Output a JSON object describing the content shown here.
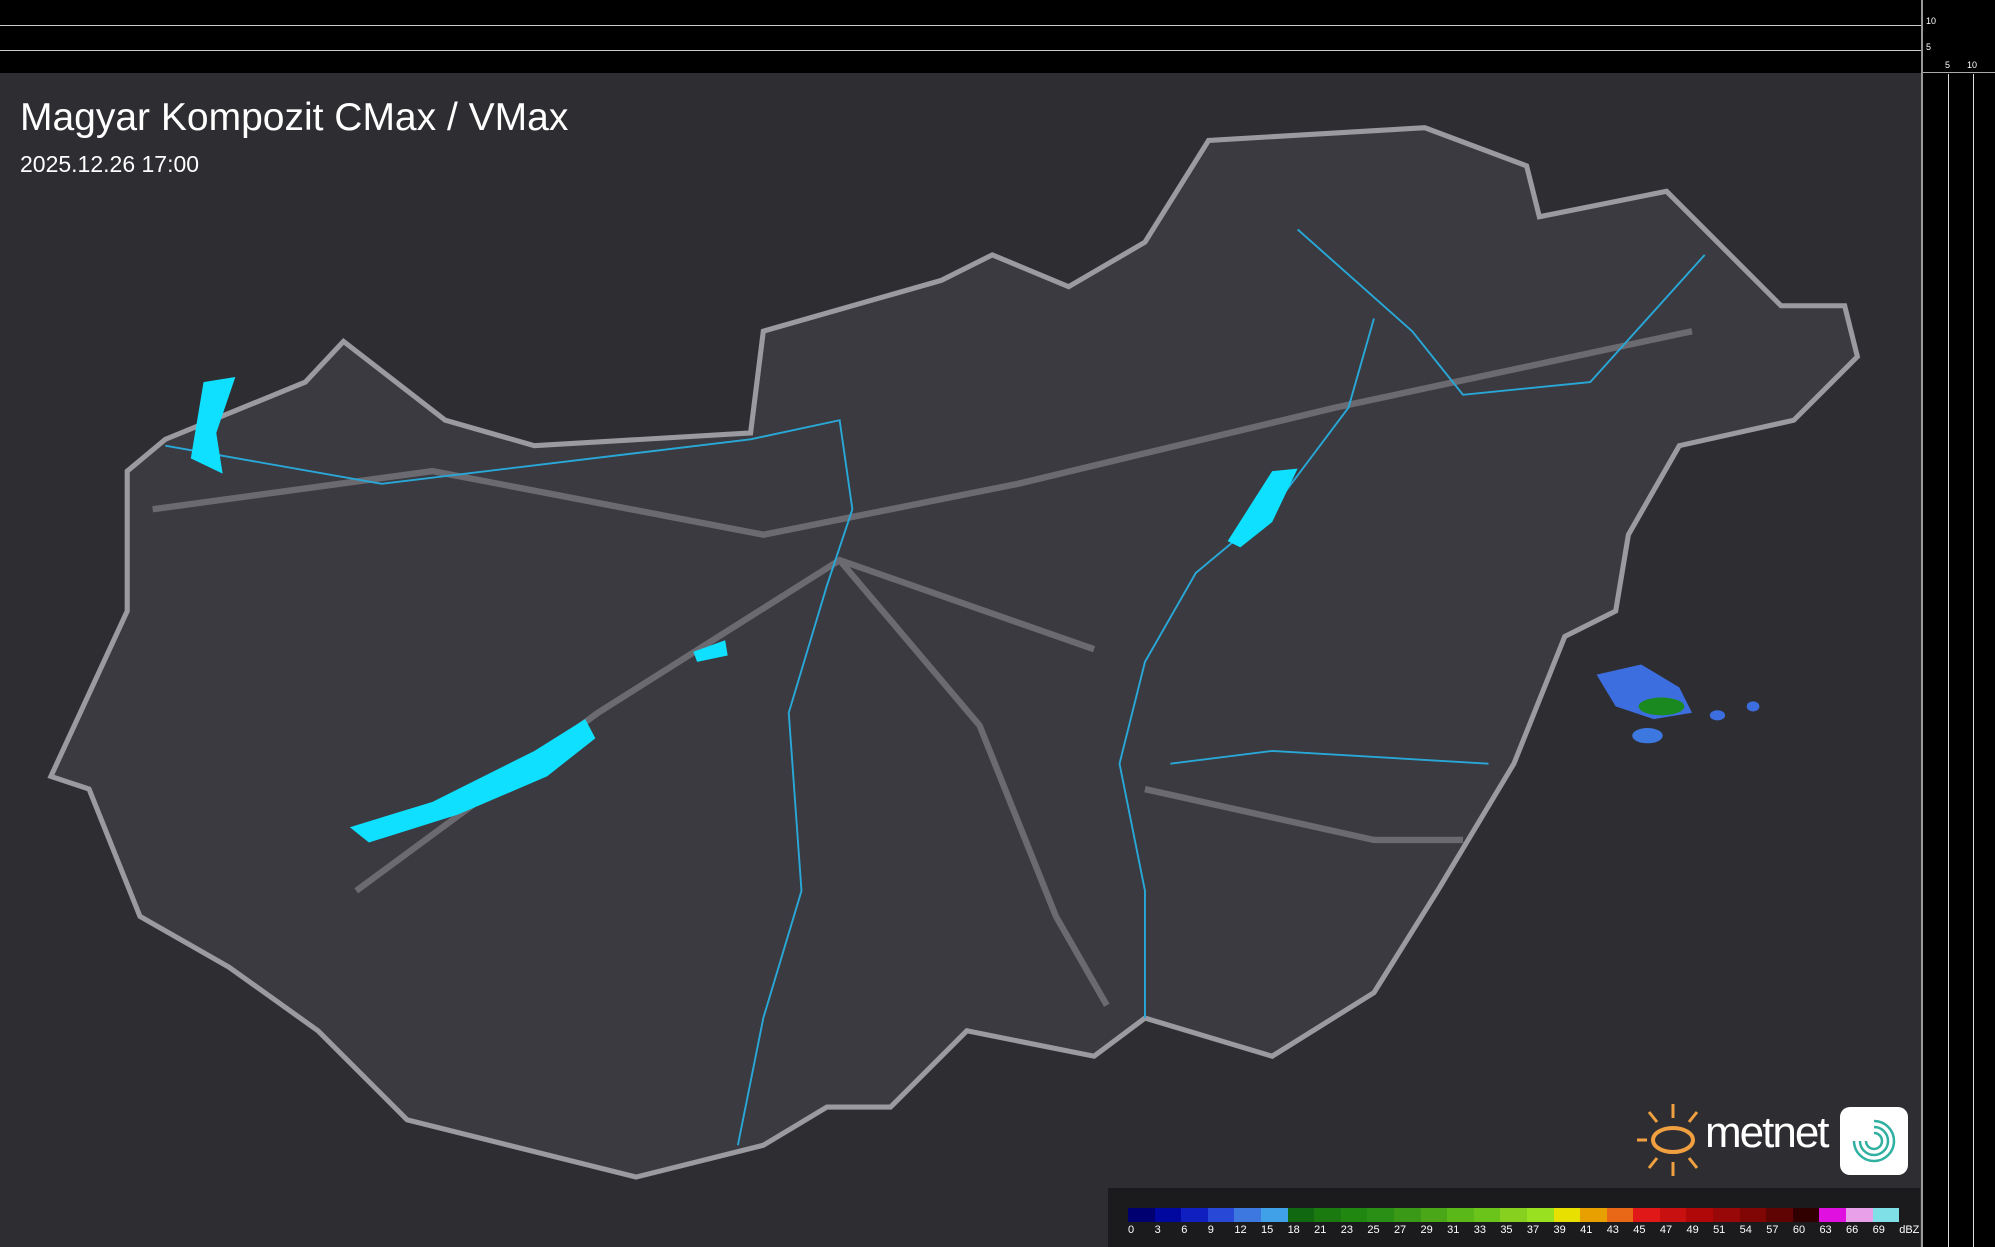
{
  "header": {
    "title": "Magyar Kompozit CMax / VMax",
    "timestamp": "2025.12.26 17:00"
  },
  "side_axes": {
    "top_ticks": [
      "10",
      "5"
    ],
    "right_ticks": [
      "5",
      "10"
    ]
  },
  "legend": {
    "unit": "dBZ",
    "labels": [
      "0",
      "3",
      "6",
      "9",
      "12",
      "15",
      "18",
      "21",
      "23",
      "25",
      "27",
      "29",
      "31",
      "33",
      "35",
      "37",
      "39",
      "41",
      "43",
      "45",
      "47",
      "49",
      "51",
      "54",
      "57",
      "60",
      "63",
      "66",
      "69"
    ],
    "colors": [
      "#000070",
      "#0008a0",
      "#1020c0",
      "#2848d8",
      "#3c78e0",
      "#40a0e8",
      "#106810",
      "#1a7a10",
      "#208810",
      "#2a9015",
      "#3a9a18",
      "#4aa818",
      "#5ab818",
      "#6ac41a",
      "#88d020",
      "#98e020",
      "#e8e000",
      "#e8a000",
      "#e86818",
      "#e01818",
      "#c81010",
      "#b00808",
      "#980808",
      "#800606",
      "#600303",
      "#300000",
      "#e010e0",
      "#e8a0e8",
      "#80e0e8"
    ]
  },
  "logo": {
    "brand": "metnet",
    "sun_color": "#f0a040",
    "icon_color": "#30b0a0"
  },
  "colors": {
    "background": "#2e2e32",
    "country_fill": "#3a3a40",
    "border": "#9a9aa0",
    "rivers": "#29a8d8",
    "lakes": "#10e0ff",
    "roads": "#6a6a70"
  }
}
